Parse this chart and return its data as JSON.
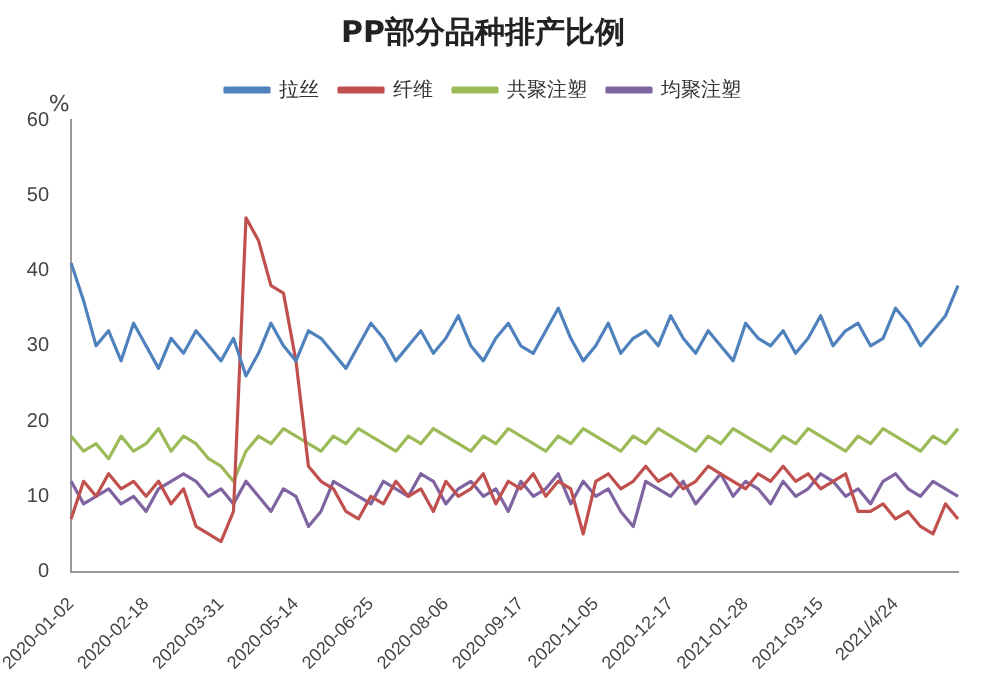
{
  "chart_data": {
    "type": "line",
    "title": "PP部分品种排产比例",
    "ylabel": "%",
    "categories": [
      "2020-01-02",
      null,
      null,
      null,
      null,
      null,
      "2020-02-18",
      null,
      null,
      null,
      null,
      null,
      "2020-03-31",
      null,
      null,
      null,
      null,
      null,
      "2020-05-14",
      null,
      null,
      null,
      null,
      null,
      "2020-06-25",
      null,
      null,
      null,
      null,
      null,
      "2020-08-06",
      null,
      null,
      null,
      null,
      null,
      "2020-09-17",
      null,
      null,
      null,
      null,
      null,
      "2020-11-05",
      null,
      null,
      null,
      null,
      null,
      "2020-12-17",
      null,
      null,
      null,
      null,
      null,
      "2021-01-28",
      null,
      null,
      null,
      null,
      null,
      "2021-03-15",
      null,
      null,
      null,
      null,
      null,
      "2021/4/24",
      null,
      null,
      null,
      null,
      null
    ],
    "series": [
      {
        "name": "拉丝",
        "color": "#4f81bd",
        "values": [
          41,
          36,
          30,
          32,
          28,
          33,
          30,
          27,
          31,
          29,
          32,
          30,
          28,
          31,
          26,
          29,
          33,
          30,
          28,
          32,
          31,
          29,
          27,
          30,
          33,
          31,
          28,
          30,
          32,
          29,
          31,
          34,
          30,
          28,
          31,
          33,
          30,
          29,
          32,
          35,
          31,
          28,
          30,
          33,
          29,
          31,
          32,
          30,
          34,
          31,
          29,
          32,
          30,
          28,
          33,
          31,
          30,
          32,
          29,
          31,
          34,
          30,
          32,
          33,
          30,
          31,
          35,
          33,
          30,
          32,
          34,
          38
        ]
      },
      {
        "name": "纤维",
        "color": "#c0504d",
        "values": [
          7,
          12,
          10,
          13,
          11,
          12,
          10,
          12,
          9,
          11,
          6,
          5,
          4,
          8,
          47,
          44,
          38,
          37,
          28,
          14,
          12,
          11,
          8,
          7,
          10,
          9,
          12,
          10,
          11,
          8,
          12,
          10,
          11,
          13,
          9,
          12,
          11,
          13,
          10,
          12,
          11,
          5,
          12,
          13,
          11,
          12,
          14,
          12,
          13,
          11,
          12,
          14,
          13,
          12,
          11,
          13,
          12,
          14,
          12,
          13,
          11,
          12,
          13,
          8,
          8,
          9,
          7,
          8,
          6,
          5,
          9,
          7
        ]
      },
      {
        "name": "共聚注塑",
        "color": "#9bbb59",
        "values": [
          18,
          16,
          17,
          15,
          18,
          16,
          17,
          19,
          16,
          18,
          17,
          15,
          14,
          12,
          16,
          18,
          17,
          19,
          18,
          17,
          16,
          18,
          17,
          19,
          18,
          17,
          16,
          18,
          17,
          19,
          18,
          17,
          16,
          18,
          17,
          19,
          18,
          17,
          16,
          18,
          17,
          19,
          18,
          17,
          16,
          18,
          17,
          19,
          18,
          17,
          16,
          18,
          17,
          19,
          18,
          17,
          16,
          18,
          17,
          19,
          18,
          17,
          16,
          18,
          17,
          19,
          18,
          17,
          16,
          18,
          17,
          19
        ]
      },
      {
        "name": "均聚注塑",
        "color": "#8064a2",
        "values": [
          12,
          9,
          10,
          11,
          9,
          10,
          8,
          11,
          12,
          13,
          12,
          10,
          11,
          9,
          12,
          10,
          8,
          11,
          10,
          6,
          8,
          12,
          11,
          10,
          9,
          12,
          11,
          10,
          13,
          12,
          9,
          11,
          12,
          10,
          11,
          8,
          12,
          10,
          11,
          13,
          9,
          12,
          10,
          11,
          8,
          6,
          12,
          11,
          10,
          12,
          9,
          11,
          13,
          10,
          12,
          11,
          9,
          12,
          10,
          11,
          13,
          12,
          10,
          11,
          9,
          12,
          13,
          11,
          10,
          12,
          11,
          10
        ]
      }
    ],
    "ylim": [
      0,
      60
    ],
    "yticks": [
      0,
      10,
      20,
      30,
      40,
      50,
      60
    ],
    "legend": "top",
    "marker": "none",
    "line_style": "solid",
    "grid": false
  }
}
